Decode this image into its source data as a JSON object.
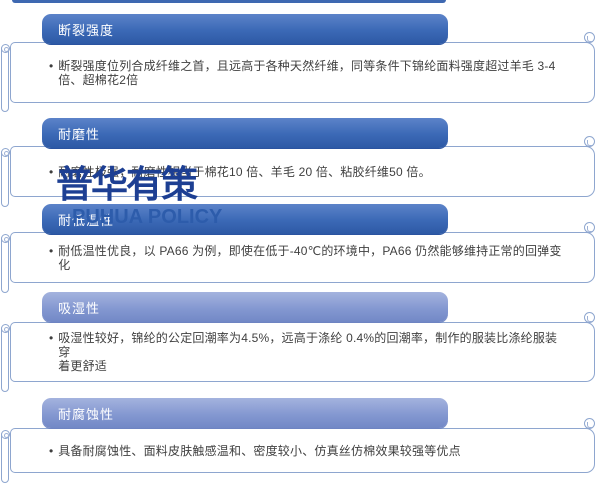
{
  "bullet": "•",
  "watermark": {
    "line1": "普华有策",
    "line2": "PUHUA POLICY"
  },
  "sections": [
    {
      "header": "断裂强度",
      "body": "断裂强度位列合成纤维之首，且远高于各种天然纤维，同等条件下锦纶面料强度超过羊毛 3-4\n倍、超棉花2倍"
    },
    {
      "header": "耐磨性",
      "body": "耐磨性极强，耐磨性相当于棉花10 倍、羊毛 20 倍、粘胶纤维50 倍。"
    },
    {
      "header": "耐低温性",
      "body": "耐低温性优良，以 PA66 为例，即使在低于-40℃的环境中，PA66 仍然能够维持正常的回弹变化"
    },
    {
      "header": "吸湿性",
      "body": "吸湿性较好，锦纶的公定回潮率为4.5%，远高于涤纶 0.4%的回潮率，制作的服装比涤纶服装穿\n着更舒适"
    },
    {
      "header": "耐腐蚀性",
      "body": "具备耐腐蚀性、面料皮肤触感温和、密度较小、仿真丝仿棉效果较强等优点"
    }
  ],
  "colors": {
    "header_blue_top": "#5c83c9",
    "header_blue_bottom": "#2d59a5",
    "header_light_top": "#a4b3de",
    "header_light_bottom": "#7288c6",
    "scroll_border": "#8ea6cf",
    "body_text": "#3f3f3f",
    "watermark_navy": "#1d3f93",
    "watermark_blue": "#2d5cab",
    "top_strip": "#3e68b1"
  }
}
